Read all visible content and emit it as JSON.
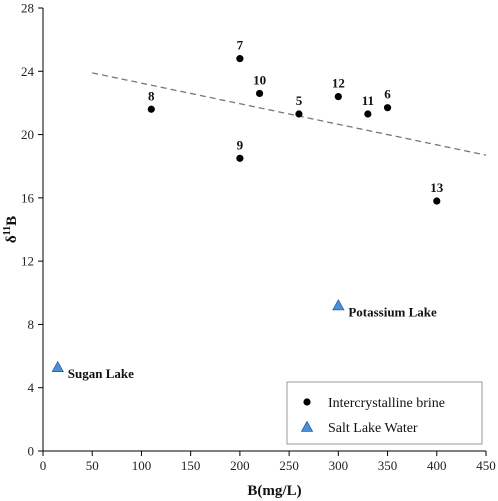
{
  "chart_data": {
    "type": "scatter",
    "xlabel": "B(mg/L)",
    "ylabel": {
      "base": "δ",
      "sup": "11",
      "tail": "B"
    },
    "xlim": [
      0,
      450
    ],
    "ylim": [
      0,
      28
    ],
    "xticks": [
      0,
      50,
      100,
      150,
      200,
      250,
      300,
      350,
      400,
      450
    ],
    "yticks": [
      0,
      4,
      8,
      12,
      16,
      20,
      24,
      28
    ],
    "grid": false,
    "legend_position": "bottom-right",
    "legend": [
      "Intercrystalline brine",
      "Salt Lake Water"
    ],
    "series": [
      {
        "name": "Intercrystalline brine",
        "marker": "circle",
        "color": "#000000",
        "points": [
          {
            "label": "7",
            "x": 200,
            "y": 24.8
          },
          {
            "label": "10",
            "x": 220,
            "y": 22.6
          },
          {
            "label": "8",
            "x": 110,
            "y": 21.6
          },
          {
            "label": "5",
            "x": 260,
            "y": 21.3
          },
          {
            "label": "12",
            "x": 300,
            "y": 22.4
          },
          {
            "label": "11",
            "x": 330,
            "y": 21.3
          },
          {
            "label": "6",
            "x": 350,
            "y": 21.7
          },
          {
            "label": "9",
            "x": 200,
            "y": 18.5
          },
          {
            "label": "13",
            "x": 400,
            "y": 15.8
          }
        ]
      },
      {
        "name": "Salt Lake Water",
        "marker": "triangle",
        "color": "#4a90d9",
        "points": [
          {
            "label": "Potassium Lake",
            "x": 300,
            "y": 9.2
          },
          {
            "label": "Sugan Lake",
            "x": 15,
            "y": 5.3
          }
        ]
      }
    ],
    "trendline": {
      "style": "dashed",
      "color": "#777777",
      "x": [
        50,
        450
      ],
      "y": [
        23.9,
        18.7
      ]
    }
  }
}
